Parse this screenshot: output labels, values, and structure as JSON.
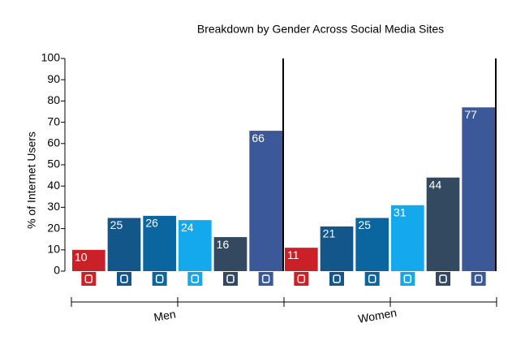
{
  "chart_data": {
    "type": "bar",
    "title": "Breakdown by Gender Across Social Media Sites",
    "y_label": "% of Internet Users",
    "categories": [
      "Men",
      "Women"
    ],
    "series": [
      {
        "color": "#cb2027",
        "values": [
          10,
          11
        ]
      },
      {
        "color": "#13578a",
        "values": [
          25,
          21
        ]
      },
      {
        "color": "#0b66a0",
        "values": [
          26,
          25
        ]
      },
      {
        "color": "#13a9ec",
        "values": [
          24,
          31
        ]
      },
      {
        "color": "#33495f",
        "values": [
          16,
          44
        ]
      },
      {
        "color": "#3b5998",
        "values": [
          66,
          77
        ]
      }
    ],
    "ylim": [
      0,
      100
    ],
    "yticks": [
      0,
      10,
      20,
      30,
      40,
      50,
      60,
      70,
      80,
      90,
      100
    ]
  }
}
